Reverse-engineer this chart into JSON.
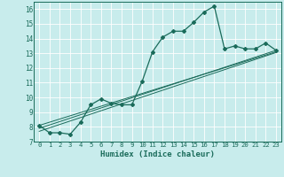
{
  "xlabel": "Humidex (Indice chaleur)",
  "ylabel": "",
  "bg_color": "#c8ecec",
  "grid_color": "#ffffff",
  "line_color": "#1a6b5a",
  "xlim": [
    -0.5,
    23.5
  ],
  "ylim": [
    7,
    16.5
  ],
  "yticks": [
    7,
    8,
    9,
    10,
    11,
    12,
    13,
    14,
    15,
    16
  ],
  "xticks": [
    0,
    1,
    2,
    3,
    4,
    5,
    6,
    7,
    8,
    9,
    10,
    11,
    12,
    13,
    14,
    15,
    16,
    17,
    18,
    19,
    20,
    21,
    22,
    23
  ],
  "main_line_x": [
    0,
    1,
    2,
    3,
    4,
    5,
    6,
    7,
    8,
    9,
    10,
    11,
    12,
    13,
    14,
    15,
    16,
    17,
    18,
    19,
    20,
    21,
    22,
    23
  ],
  "main_line_y": [
    8.1,
    7.6,
    7.6,
    7.5,
    8.3,
    9.5,
    9.9,
    9.6,
    9.5,
    9.5,
    11.1,
    13.1,
    14.1,
    14.5,
    14.5,
    15.1,
    15.8,
    16.2,
    13.3,
    13.5,
    13.3,
    13.3,
    13.7,
    13.2
  ],
  "reg_line1_x": [
    0,
    23
  ],
  "reg_line1_y": [
    7.9,
    13.2
  ],
  "reg_line2_x": [
    0,
    23
  ],
  "reg_line2_y": [
    8.1,
    13.1
  ],
  "reg_line3_x": [
    0,
    23
  ],
  "reg_line3_y": [
    7.7,
    13.05
  ]
}
